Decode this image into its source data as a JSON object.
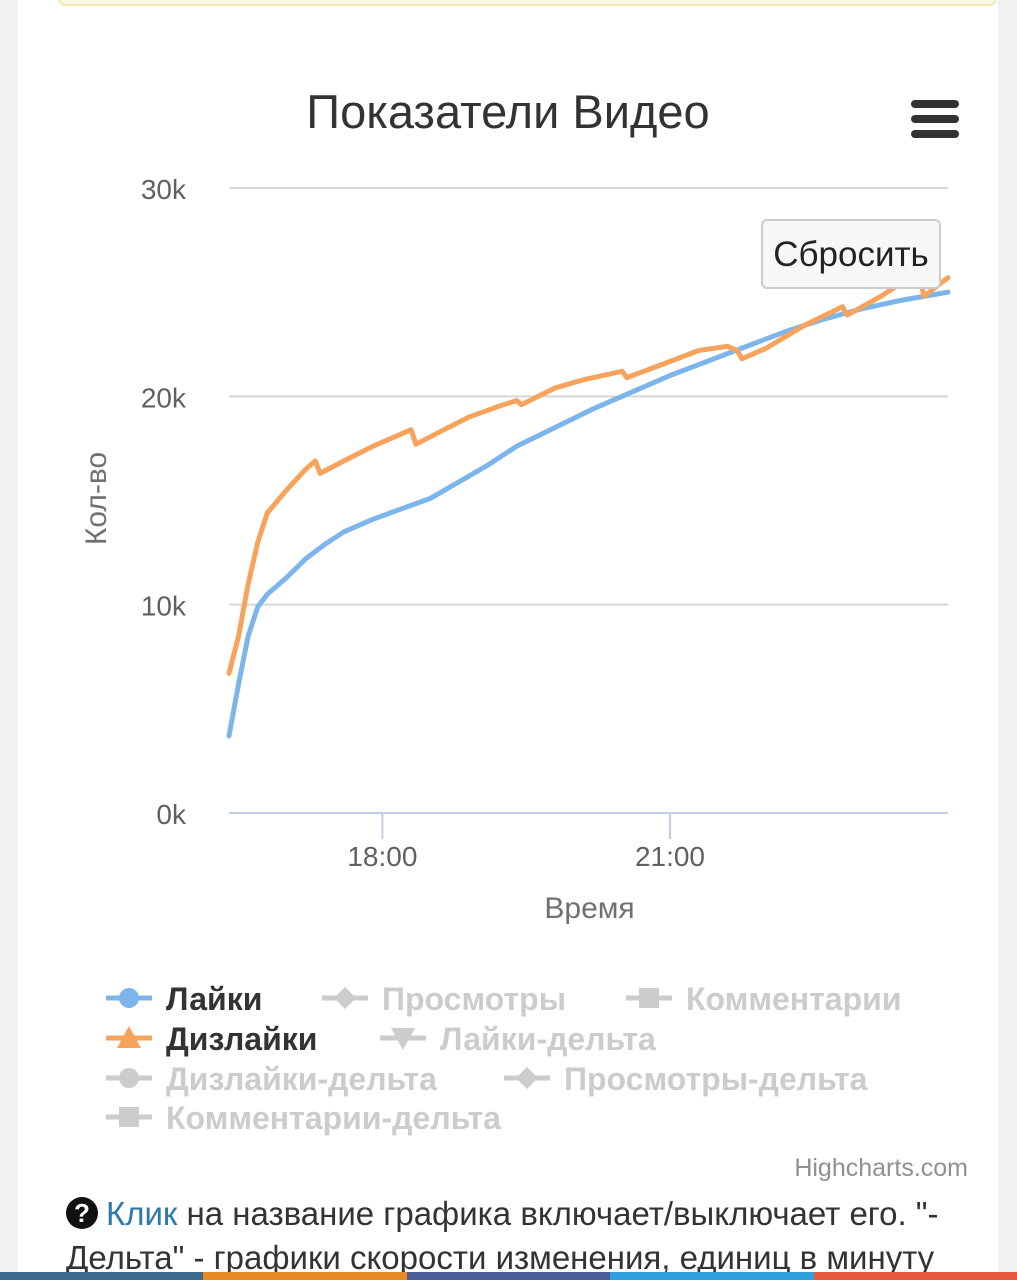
{
  "chart_data": {
    "type": "line",
    "title": "Показатели Видео",
    "xlabel": "Время",
    "ylabel": "Кол-во",
    "x_unit": "hours",
    "xlim": [
      16.4,
      23.9
    ],
    "ylim": [
      0,
      30000
    ],
    "y_ticks": [
      "0k",
      "10k",
      "20k",
      "30k"
    ],
    "y_tick_values": [
      0,
      10000,
      20000,
      30000
    ],
    "x_ticks": [
      "18:00",
      "21:00"
    ],
    "x_tick_values": [
      18,
      21
    ],
    "grid": true,
    "legend_position": "bottom",
    "series": [
      {
        "name": "Лайки",
        "color": "#7cb5ec",
        "marker": "circle",
        "visible": true,
        "x": [
          16.4,
          16.5,
          16.6,
          16.7,
          16.8,
          17.0,
          17.2,
          17.4,
          17.6,
          17.9,
          18.2,
          18.5,
          18.8,
          19.1,
          19.4,
          19.8,
          20.2,
          20.6,
          21.0,
          21.4,
          21.8,
          22.2,
          22.6,
          23.0,
          23.4,
          23.9
        ],
        "y": [
          3700,
          6200,
          8500,
          9900,
          10500,
          11300,
          12200,
          12900,
          13500,
          14100,
          14600,
          15100,
          15900,
          16700,
          17600,
          18500,
          19400,
          20200,
          21000,
          21700,
          22400,
          23100,
          23700,
          24200,
          24600,
          25000
        ]
      },
      {
        "name": "Дизлайки",
        "color": "#f7a35c",
        "marker": "triangle",
        "visible": true,
        "x": [
          16.4,
          16.5,
          16.6,
          16.7,
          16.8,
          17.0,
          17.2,
          17.3,
          17.35,
          17.6,
          17.9,
          18.2,
          18.3,
          18.35,
          18.6,
          18.9,
          19.2,
          19.4,
          19.45,
          19.8,
          20.1,
          20.4,
          20.5,
          20.55,
          20.9,
          21.3,
          21.6,
          21.7,
          21.75,
          22.0,
          22.4,
          22.8,
          22.85,
          23.2,
          23.5,
          23.6,
          23.65,
          23.9
        ],
        "y": [
          6700,
          8500,
          11000,
          13000,
          14400,
          15500,
          16500,
          16900,
          16300,
          16900,
          17600,
          18200,
          18400,
          17700,
          18300,
          19000,
          19500,
          19800,
          19600,
          20400,
          20800,
          21100,
          21200,
          20900,
          21500,
          22200,
          22400,
          22200,
          21800,
          22300,
          23400,
          24300,
          23900,
          24800,
          25700,
          25800,
          24800,
          25700
        ]
      },
      {
        "name": "Просмотры",
        "visible": false,
        "marker": "diamond",
        "color": "#cccccc"
      },
      {
        "name": "Комментарии",
        "visible": false,
        "marker": "square",
        "color": "#cccccc"
      },
      {
        "name": "Лайки-дельта",
        "visible": false,
        "marker": "triangle-down",
        "color": "#cccccc"
      },
      {
        "name": "Дизлайки-дельта",
        "visible": false,
        "marker": "circle",
        "color": "#cccccc"
      },
      {
        "name": "Просмотры-дельта",
        "visible": false,
        "marker": "diamond",
        "color": "#cccccc"
      },
      {
        "name": "Комментарии-дельта",
        "visible": false,
        "marker": "square",
        "color": "#cccccc"
      }
    ]
  },
  "ui": {
    "reset_button": "Сбросить",
    "credits": "Highcharts.com",
    "footer_link": "Клик",
    "footer_text": " на название графика включает/выключает его. \"-Дельта\" - графики скорости изменения, единиц в минуту",
    "help_icon": "?"
  },
  "colors": {
    "bottom_bar": [
      "#3e6a8e",
      "#e98b23",
      "#4a5d98",
      "#2ea1dc",
      "#e85a3e"
    ]
  }
}
